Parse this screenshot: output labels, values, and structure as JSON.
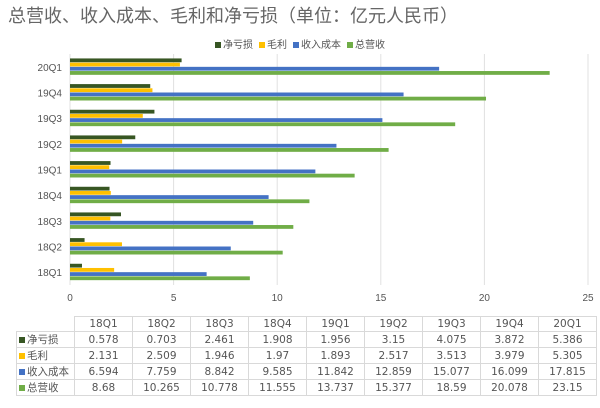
{
  "chart_data": {
    "type": "bar",
    "orientation": "horizontal",
    "title": "总营收、收入成本、毛利和净亏损（单位：亿元人民币）",
    "categories": [
      "18Q1",
      "18Q2",
      "18Q3",
      "18Q4",
      "19Q1",
      "19Q2",
      "19Q3",
      "19Q4",
      "20Q1"
    ],
    "xlim": [
      0,
      25
    ],
    "xticks": [
      0,
      5,
      10,
      15,
      20,
      25
    ],
    "grid": true,
    "legend_position": "top",
    "series": [
      {
        "name": "净亏损",
        "color": "#375623",
        "values": [
          0.578,
          0.703,
          2.461,
          1.908,
          1.956,
          3.15,
          4.075,
          3.872,
          5.386
        ],
        "labels": [
          "0.578",
          "0.703",
          "2.461",
          "1.908",
          "1.956",
          "3.15",
          "4.075",
          "3.872",
          "5.386"
        ]
      },
      {
        "name": "毛利",
        "color": "#FFC000",
        "values": [
          2.131,
          2.509,
          1.946,
          1.97,
          1.893,
          2.517,
          3.513,
          3.979,
          5.305
        ],
        "labels": [
          "2.131",
          "2.509",
          "1.946",
          "1.97",
          "1.893",
          "2.517",
          "3.513",
          "3.979",
          "5.305"
        ]
      },
      {
        "name": "收入成本",
        "color": "#4472C4",
        "values": [
          6.594,
          7.759,
          8.842,
          9.585,
          11.842,
          12.859,
          15.077,
          16.099,
          17.815
        ],
        "labels": [
          "6.594",
          "7.759",
          "8.842",
          "9.585",
          "11.842",
          "12.859",
          "15.077",
          "16.099",
          "17.815"
        ]
      },
      {
        "name": "总营收",
        "color": "#70AD47",
        "values": [
          8.68,
          10.265,
          10.778,
          11.555,
          13.737,
          15.377,
          18.59,
          20.078,
          23.15
        ],
        "labels": [
          "8.68",
          "10.265",
          "10.778",
          "11.555",
          "13.737",
          "15.377",
          "18.59",
          "20.078",
          "23.15"
        ]
      }
    ]
  }
}
